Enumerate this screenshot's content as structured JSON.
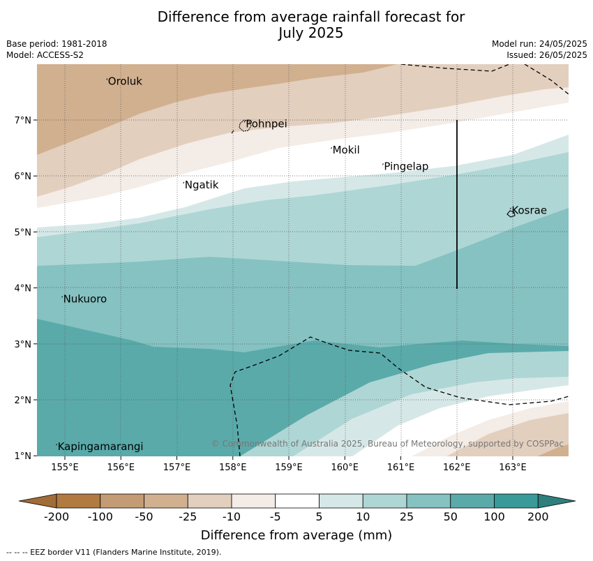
{
  "header": {
    "title_line1": "Difference from average rainfall forecast for",
    "title_line2": "July 2025",
    "base_period": "Base period: 1981-2018",
    "model": "Model: ACCESS-S2",
    "model_run": "Model run: 24/05/2025",
    "issued": "Issued: 26/05/2025"
  },
  "map": {
    "lon_ticks": [
      "155°E",
      "156°E",
      "157°E",
      "158°E",
      "159°E",
      "160°E",
      "161°E",
      "162°E",
      "163°E"
    ],
    "lat_ticks": [
      "7°N",
      "6°N",
      "5°N",
      "4°N",
      "3°N",
      "2°N",
      "1°N"
    ],
    "places": [
      {
        "name": "Oroluk",
        "lon": 155.77,
        "lat": 7.63
      },
      {
        "name": "Pohnpei",
        "lon": 158.23,
        "lat": 6.87
      },
      {
        "name": "Mokil",
        "lon": 159.78,
        "lat": 6.4
      },
      {
        "name": "Pingelap",
        "lon": 160.7,
        "lat": 6.11
      },
      {
        "name": "Ngatik",
        "lon": 157.14,
        "lat": 5.78
      },
      {
        "name": "Kosrae",
        "lon": 162.98,
        "lat": 5.32
      },
      {
        "name": "Nukuoro",
        "lon": 154.97,
        "lat": 3.74
      },
      {
        "name": "Kapingamarangi",
        "lon": 154.87,
        "lat": 1.1
      }
    ],
    "copyright": "© Commonwealth of Australia 2025, Bureau of Meteorology, supported by COSPPac"
  },
  "colorbar": {
    "tick_labels": [
      "-200",
      "-100",
      "-50",
      "-25",
      "-10",
      "-5",
      "5",
      "10",
      "25",
      "50",
      "100",
      "200"
    ],
    "colors": [
      "#a06c38",
      "#b07a40",
      "#c39b74",
      "#d1b08f",
      "#e3cfbe",
      "#f4ece6",
      "#ffffff",
      "#d5e8e7",
      "#aed6d5",
      "#85c2c1",
      "#5aaaaa",
      "#3a9a99",
      "#2f7f7e"
    ],
    "label": "Difference from average (mm)"
  },
  "footer": {
    "eez_note": "-- -- -- EEZ border V11 (Flanders Marine Institute, 2019)."
  }
}
